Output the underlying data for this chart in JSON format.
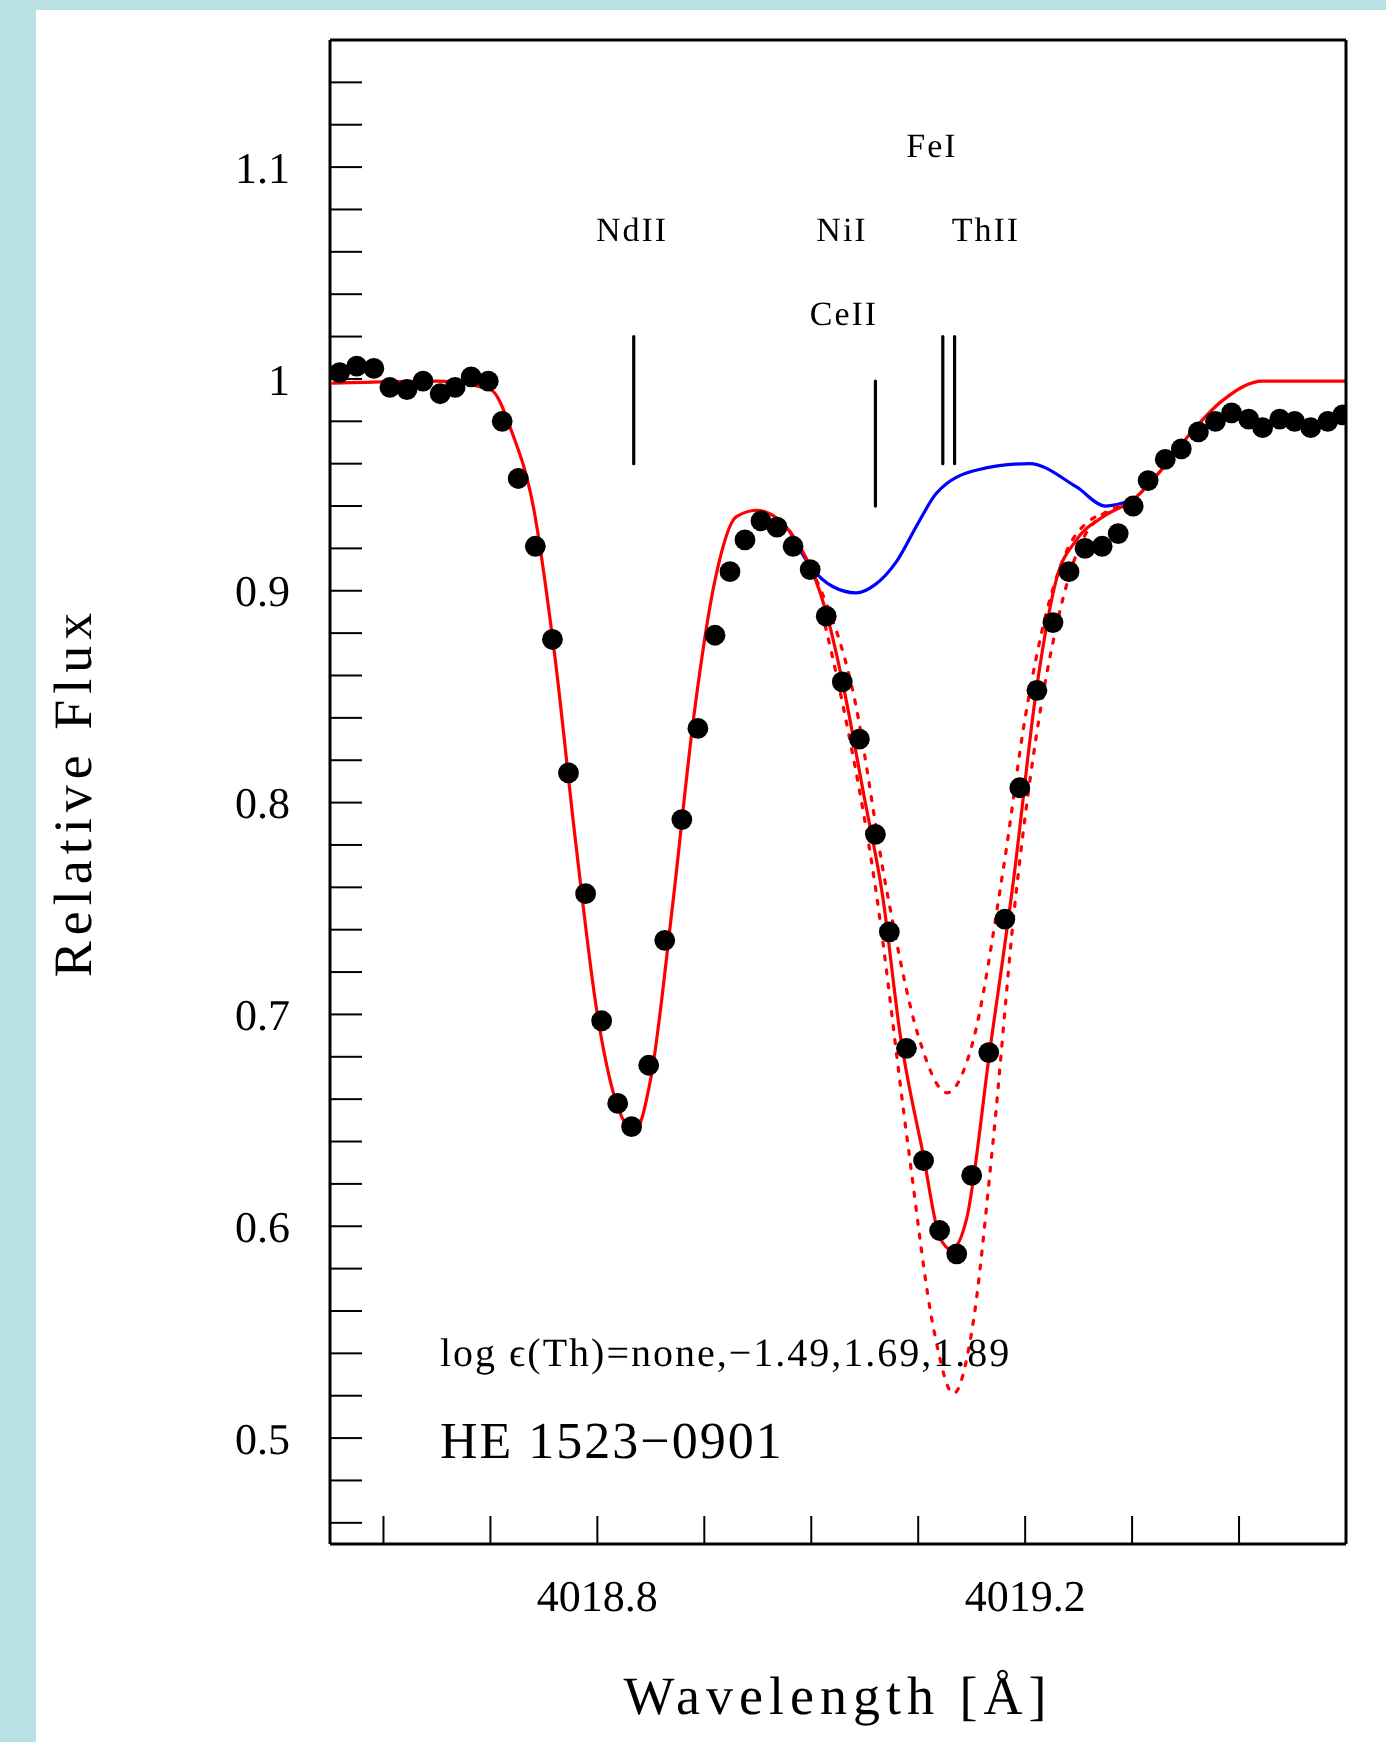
{
  "chart_data": {
    "type": "line",
    "xlabel": "Wavelength [Å]",
    "ylabel": "Relative Flux",
    "xlim": [
      4018.55,
      4019.5
    ],
    "xticks": [
      {
        "value": 4018.6,
        "label": null
      },
      {
        "value": 4018.7,
        "label": null
      },
      4018.8,
      {
        "value": 4018.9,
        "label": null
      },
      {
        "value": 4019.0,
        "label": null
      },
      {
        "value": 4019.1,
        "label": null
      },
      4019.2,
      {
        "value": 4019.3,
        "label": null
      },
      {
        "value": 4019.4,
        "label": null
      },
      {
        "value": 4019.5,
        "label": null
      }
    ],
    "ylim": [
      0.45,
      1.16
    ],
    "yticks": [
      {
        "value": 0.46,
        "label": null
      },
      {
        "value": 0.48,
        "label": null
      },
      0.5,
      {
        "value": 0.52,
        "label": null
      },
      {
        "value": 0.54,
        "label": null
      },
      {
        "value": 0.56,
        "label": null
      },
      {
        "value": 0.58,
        "label": null
      },
      0.6,
      {
        "value": 0.62,
        "label": null
      },
      {
        "value": 0.64,
        "label": null
      },
      {
        "value": 0.66,
        "label": null
      },
      {
        "value": 0.68,
        "label": null
      },
      0.7,
      {
        "value": 0.72,
        "label": null
      },
      {
        "value": 0.74,
        "label": null
      },
      {
        "value": 0.76,
        "label": null
      },
      {
        "value": 0.78,
        "label": null
      },
      0.8,
      {
        "value": 0.82,
        "label": null
      },
      {
        "value": 0.84,
        "label": null
      },
      {
        "value": 0.86,
        "label": null
      },
      {
        "value": 0.88,
        "label": null
      },
      0.9,
      {
        "value": 0.92,
        "label": null
      },
      {
        "value": 0.94,
        "label": null
      },
      {
        "value": 0.96,
        "label": null
      },
      {
        "value": 0.98,
        "label": null
      },
      1,
      {
        "value": 1.02,
        "label": null
      },
      {
        "value": 1.04,
        "label": null
      },
      {
        "value": 1.06,
        "label": null
      },
      {
        "value": 1.08,
        "label": null
      },
      1.1,
      {
        "value": 1.12,
        "label": null
      },
      {
        "value": 1.14,
        "label": null
      }
    ],
    "grid": false,
    "series": [
      {
        "color": "#0000ff",
        "line_style": "solid",
        "x": [
          4018.98,
          4019.0,
          4019.02,
          4019.042,
          4019.06,
          4019.08,
          4019.1,
          4019.117,
          4019.155,
          4019.204,
          4019.248,
          4019.275,
          4019.301
        ],
        "values": [
          0.928,
          0.911,
          0.902,
          0.899,
          0.903,
          0.914,
          0.932,
          0.946,
          0.957,
          0.96,
          0.949,
          0.94,
          0.943
        ]
      },
      {
        "color": "#ff0000",
        "line_style": "dotted",
        "x": [
          4019.005,
          4019.04,
          4019.07,
          4019.1,
          4019.127,
          4019.15,
          4019.18,
          4019.2,
          4019.22,
          4019.24,
          4019.26,
          4019.28
        ],
        "values": [
          0.905,
          0.85,
          0.76,
          0.69,
          0.663,
          0.685,
          0.77,
          0.84,
          0.89,
          0.92,
          0.933,
          0.937
        ]
      },
      {
        "color": "#ff0000",
        "line_style": "dotted",
        "x": [
          4019.01,
          4019.03,
          4019.06,
          4019.09,
          4019.115,
          4019.133,
          4019.15,
          4019.17,
          4019.19,
          4019.21,
          4019.23,
          4019.25,
          4019.27,
          4019.29
        ],
        "values": [
          0.89,
          0.845,
          0.76,
          0.64,
          0.55,
          0.521,
          0.55,
          0.64,
          0.75,
          0.83,
          0.885,
          0.92,
          0.935,
          0.94
        ]
      },
      {
        "color": "#ff0000",
        "line_style": "solid",
        "x": [
          4018.553,
          4018.65,
          4018.7,
          4018.72,
          4018.74,
          4018.76,
          4018.78,
          4018.8,
          4018.82,
          4018.835,
          4018.85,
          4018.87,
          4018.89,
          4018.91,
          4018.93,
          4018.949,
          4018.98,
          4019.016,
          4019.03,
          4019.049,
          4019.067,
          4019.083,
          4019.105,
          4019.12,
          4019.131,
          4019.145,
          4019.167,
          4019.189,
          4019.211,
          4019.229,
          4019.248,
          4019.273,
          4019.301,
          4019.329,
          4019.354,
          4019.385,
          4019.422,
          4019.5
        ],
        "values": [
          0.998,
          0.999,
          0.995,
          0.975,
          0.94,
          0.87,
          0.78,
          0.7,
          0.655,
          0.645,
          0.67,
          0.75,
          0.84,
          0.905,
          0.935,
          0.938,
          0.928,
          0.886,
          0.855,
          0.804,
          0.755,
          0.691,
          0.633,
          0.595,
          0.589,
          0.603,
          0.683,
          0.763,
          0.855,
          0.905,
          0.924,
          0.935,
          0.943,
          0.958,
          0.974,
          0.99,
          0.999,
          0.999
        ]
      },
      {
        "type": "scatter",
        "color": "#000000",
        "marker": "circle",
        "x": [
          4018.559,
          4018.575,
          4018.591,
          4018.606,
          4018.622,
          4018.637,
          4018.653,
          4018.667,
          4018.682,
          4018.698,
          4018.711,
          4018.726,
          4018.742,
          4018.758,
          4018.773,
          4018.789,
          4018.804,
          4018.819,
          4018.832,
          4018.848,
          4018.863,
          4018.879,
          4018.894,
          4018.91,
          4018.924,
          4018.938,
          4018.953,
          4018.968,
          4018.983,
          4018.999,
          4019.014,
          4019.029,
          4019.045,
          4019.06,
          4019.073,
          4019.089,
          4019.105,
          4019.12,
          4019.136,
          4019.15,
          4019.166,
          4019.181,
          4019.195,
          4019.211,
          4019.226,
          4019.241,
          4019.256,
          4019.272,
          4019.287,
          4019.301,
          4019.315,
          4019.331,
          4019.346,
          4019.362,
          4019.378,
          4019.393,
          4019.409,
          4019.422,
          4019.438,
          4019.452,
          4019.467,
          4019.483,
          4019.497
        ],
        "values": [
          1.003,
          1.006,
          1.005,
          0.996,
          0.995,
          0.999,
          0.993,
          0.996,
          1.001,
          0.999,
          0.98,
          0.953,
          0.921,
          0.877,
          0.814,
          0.757,
          0.697,
          0.658,
          0.647,
          0.676,
          0.735,
          0.792,
          0.835,
          0.879,
          0.909,
          0.924,
          0.933,
          0.93,
          0.921,
          0.91,
          0.888,
          0.857,
          0.83,
          0.785,
          0.739,
          0.684,
          0.631,
          0.598,
          0.587,
          0.624,
          0.682,
          0.745,
          0.807,
          0.853,
          0.885,
          0.909,
          0.92,
          0.921,
          0.927,
          0.94,
          0.952,
          0.962,
          0.967,
          0.975,
          0.98,
          0.984,
          0.981,
          0.977,
          0.981,
          0.98,
          0.977,
          0.98,
          0.983
        ]
      },
      {
        "color": "#000000",
        "line_style": "solid",
        "x": [
          4018.834,
          4018.834
        ],
        "values": [
          0.96,
          1.02
        ]
      },
      {
        "color": "#000000",
        "line_style": "solid",
        "x": [
          4019.06,
          4019.06
        ],
        "values": [
          0.94,
          0.999
        ]
      },
      {
        "color": "#000000",
        "line_style": "solid",
        "x": [
          4019.123,
          4019.123
        ],
        "values": [
          0.96,
          1.02
        ]
      },
      {
        "color": "#000000",
        "line_style": "solid",
        "x": [
          4019.134,
          4019.134
        ],
        "values": [
          0.96,
          1.02
        ]
      }
    ],
    "annotations": [
      "NdII",
      "NiI",
      "CeII",
      "FeI",
      "ThII",
      "log ϵ(Th)=none,−1.49,1.69,1.89",
      "HE 1523−0901"
    ]
  }
}
